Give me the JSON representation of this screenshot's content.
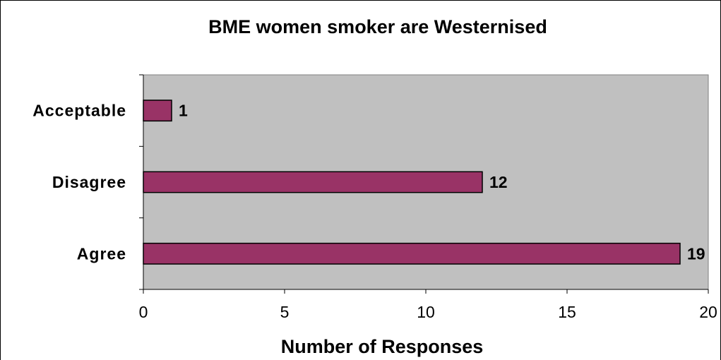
{
  "chart_data": {
    "type": "bar",
    "orientation": "horizontal",
    "title": "BME women smoker are Westernised",
    "xlabel": "Number of Responses",
    "ylabel": "",
    "categories": [
      "Agree",
      "Disagree",
      "Acceptable"
    ],
    "values": [
      19,
      12,
      1
    ],
    "xlim": [
      0,
      20
    ],
    "xticks": [
      0,
      5,
      10,
      15,
      20
    ],
    "grid": false,
    "legend": "none",
    "colors": {
      "bar_fill": "#993366",
      "bar_stroke": "#000000",
      "plot_background": "#c0c0c0",
      "page_background": "#ffffff"
    }
  }
}
